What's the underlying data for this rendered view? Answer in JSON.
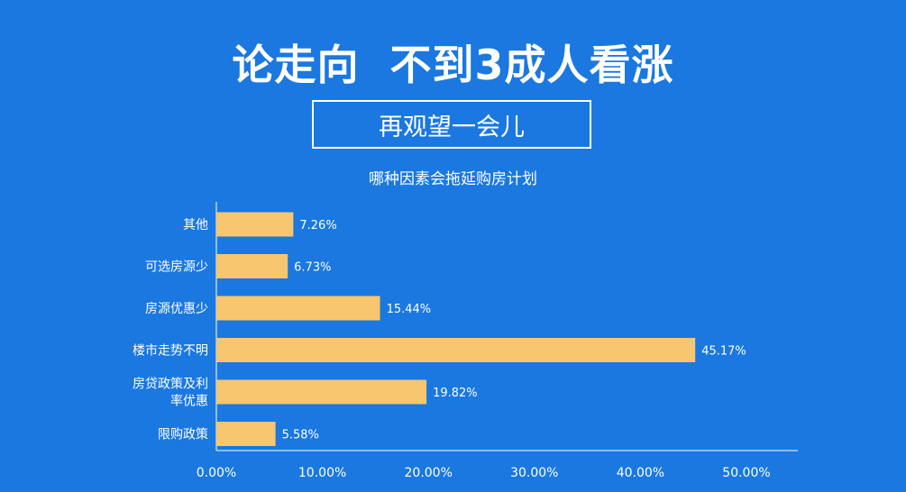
{
  "header": {
    "headline": "论走向  不到3成人看涨",
    "subheadline": "再观望一会儿"
  },
  "chart_data": {
    "type": "bar",
    "orientation": "horizontal",
    "title": "哪种因素会拖延购房计划",
    "categories": [
      "其他",
      "可选房源少",
      "房源优惠少",
      "楼市走势不明",
      "房贷政策及利率优惠",
      "限购政策"
    ],
    "category_lines": [
      [
        "其他"
      ],
      [
        "可选房源少"
      ],
      [
        "房源优惠少"
      ],
      [
        "楼市走势不明"
      ],
      [
        "房贷政策及利",
        "率优惠"
      ],
      [
        "限购政策"
      ]
    ],
    "values": [
      7.26,
      6.73,
      15.44,
      45.17,
      19.82,
      5.58
    ],
    "value_labels": [
      "7.26%",
      "6.73%",
      "15.44%",
      "45.17%",
      "19.82%",
      "5.58%"
    ],
    "xlim": [
      0,
      50
    ],
    "xticks": [
      0,
      10,
      20,
      30,
      40,
      50
    ],
    "xtick_labels": [
      "0.00%",
      "10.00%",
      "20.00%",
      "30.00%",
      "40.00%",
      "50.00%"
    ],
    "xlabel": "",
    "ylabel": "",
    "grid": false,
    "legend": "none",
    "colors": {
      "bar": "#f8c66e",
      "text": "#ffffff",
      "axis": "#ffffff",
      "background": "#1a78e0"
    }
  }
}
